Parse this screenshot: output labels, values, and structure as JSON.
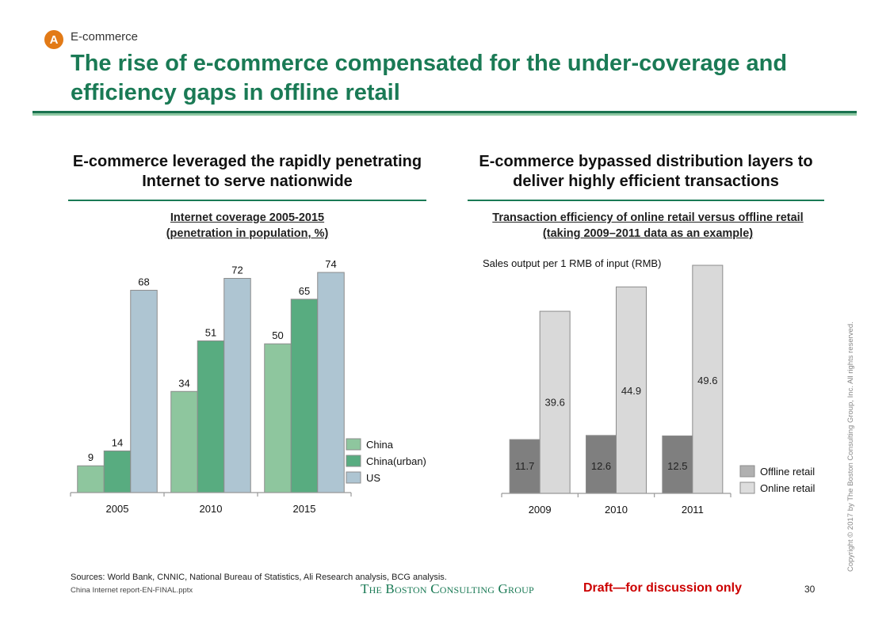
{
  "header": {
    "badge": "A",
    "section": "E-commerce",
    "title": "The rise of e-commerce compensated for the under-coverage and efficiency gaps in offline retail"
  },
  "left": {
    "heading": "E-commerce leveraged the rapidly penetrating Internet to serve nationwide",
    "chart_title_line1": "Internet coverage 2005-2015",
    "chart_title_line2": "(penetration in population, %)"
  },
  "right": {
    "heading": "E-commerce bypassed distribution layers to deliver highly efficient transactions",
    "chart_title_line1": "Transaction efficiency of online retail versus offline retail",
    "chart_title_line2": "(taking 2009–2011 data as an example)"
  },
  "chart_data": [
    {
      "type": "bar",
      "title": "Internet coverage 2005-2015 (penetration in population, %)",
      "xlabel": "",
      "ylabel": "",
      "categories": [
        "2005",
        "2010",
        "2015"
      ],
      "series": [
        {
          "name": "China",
          "values": [
            9,
            34,
            50
          ],
          "color": "#8ec69e"
        },
        {
          "name": "China(urban)",
          "values": [
            14,
            51,
            65
          ],
          "color": "#58ac80"
        },
        {
          "name": "US",
          "values": [
            68,
            72,
            74
          ],
          "color": "#aec5d2"
        }
      ],
      "ylim": [
        0,
        74
      ],
      "grid": false,
      "data_labels": "above",
      "legend": "bottom-right"
    },
    {
      "type": "bar",
      "title": "Transaction efficiency of online retail versus offline retail (taking 2009–2011 data as an example)",
      "subtitle": "Sales output per 1 RMB of input (RMB)",
      "xlabel": "",
      "ylabel": "",
      "categories": [
        "2009",
        "2010",
        "2011"
      ],
      "series": [
        {
          "name": "Offline retail",
          "values": [
            11.7,
            12.6,
            12.5
          ],
          "color": "#7f7f7f",
          "legend_color": "#b0b0b0"
        },
        {
          "name": "Online retail",
          "values": [
            39.6,
            44.9,
            49.6
          ],
          "color": "#d9d9d9",
          "legend_color": "#dddddd"
        }
      ],
      "ylim": [
        0,
        49.6
      ],
      "grid": false,
      "data_labels": "inside",
      "legend": "bottom-right"
    }
  ],
  "footer": {
    "sources": "Sources: World Bank, CNNIC, National Bureau of Statistics, Ali Research analysis, BCG analysis.",
    "filename": "China Internet report-EN-FINAL.pptx",
    "brand": "The Boston Consulting Group",
    "draft": "Draft—for discussion only",
    "page": "30",
    "copyright": "Copyright © 2017 by The Boston Consulting Group, Inc. All rights reserved."
  }
}
